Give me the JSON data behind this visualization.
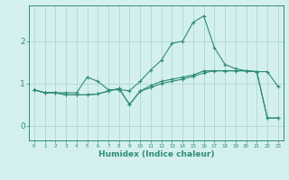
{
  "x": [
    0,
    1,
    2,
    3,
    4,
    5,
    6,
    7,
    8,
    9,
    10,
    11,
    12,
    13,
    14,
    15,
    16,
    17,
    18,
    19,
    20,
    21,
    22,
    23
  ],
  "series1": [
    0.85,
    0.78,
    0.78,
    0.78,
    0.78,
    1.15,
    1.05,
    0.85,
    0.85,
    0.83,
    1.05,
    1.32,
    1.55,
    1.95,
    2.0,
    2.45,
    2.6,
    1.85,
    1.45,
    1.35,
    1.3,
    1.28,
    1.28,
    0.93
  ],
  "series2": [
    0.85,
    0.78,
    0.78,
    0.73,
    0.73,
    0.73,
    0.75,
    0.82,
    0.88,
    0.5,
    0.82,
    0.95,
    1.05,
    1.1,
    1.15,
    1.2,
    1.3,
    1.3,
    1.3,
    1.3,
    1.3,
    1.28,
    0.18,
    0.18
  ],
  "series3": [
    0.85,
    0.78,
    0.78,
    0.73,
    0.73,
    0.73,
    0.75,
    0.82,
    0.88,
    0.5,
    0.82,
    0.9,
    1.0,
    1.05,
    1.1,
    1.17,
    1.25,
    1.3,
    1.3,
    1.3,
    1.3,
    1.28,
    0.18,
    0.18
  ],
  "line_color": "#2e8b7a",
  "bg_color": "#d4f0ee",
  "grid_color": "#aed8d5",
  "xlabel": "Humidex (Indice chaleur)",
  "xlim": [
    -0.5,
    23.5
  ],
  "ylim": [
    -0.35,
    2.85
  ],
  "yticks": [
    0,
    1,
    2
  ],
  "xticks": [
    0,
    1,
    2,
    3,
    4,
    5,
    6,
    7,
    8,
    9,
    10,
    11,
    12,
    13,
    14,
    15,
    16,
    17,
    18,
    19,
    20,
    21,
    22,
    23
  ]
}
